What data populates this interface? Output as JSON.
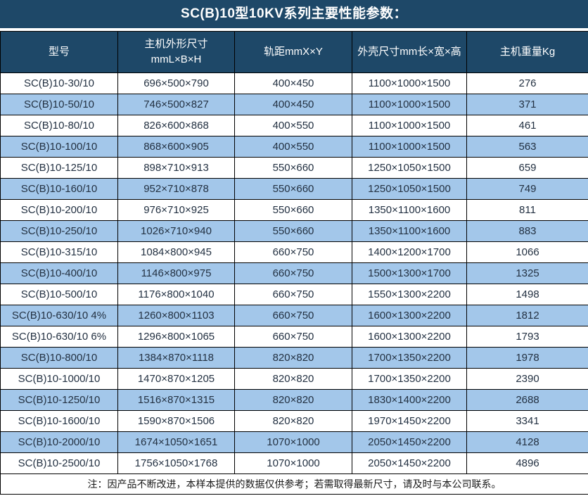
{
  "page": {
    "title": "SC(B)10型10KV系列主要性能参数："
  },
  "colors": {
    "header_bg": "#1E4868",
    "header_text": "#FFFFFF",
    "stripe_bg": "#A3C7EA",
    "row_bg": "#FFFFFF",
    "grid_border": "#000000",
    "body_text": "#233142"
  },
  "table": {
    "headers": [
      {
        "label": "型号"
      },
      {
        "label": "主机外形尺寸",
        "sub": "mmL×B×H"
      },
      {
        "label": "轨距mmX×Y"
      },
      {
        "label": "外壳尺寸mm长×宽×高"
      },
      {
        "label": "主机重量Kg"
      }
    ],
    "rows": [
      [
        "SC(B)10-30/10",
        "696×500×790",
        "400×450",
        "1100×1000×1500",
        "276"
      ],
      [
        "SC(B)10-50/10",
        "746×500×827",
        "400×450",
        "1100×1000×1500",
        "371"
      ],
      [
        "SC(B)10-80/10",
        "826×600×868",
        "400×550",
        "1100×1000×1500",
        "461"
      ],
      [
        "SC(B)10-100/10",
        "868×600×905",
        "400×550",
        "1100×1000×1500",
        "563"
      ],
      [
        "SC(B)10-125/10",
        "898×710×913",
        "550×660",
        "1250×1050×1500",
        "659"
      ],
      [
        "SC(B)10-160/10",
        "952×710×878",
        "550×660",
        "1250×1050×1500",
        "749"
      ],
      [
        "SC(B)10-200/10",
        "976×710×925",
        "550×660",
        "1350×1100×1600",
        "811"
      ],
      [
        "SC(B)10-250/10",
        "1026×710×940",
        "550×660",
        "1350×1100×1600",
        "883"
      ],
      [
        "SC(B)10-315/10",
        "1084×800×945",
        "660×750",
        "1400×1200×1700",
        "1066"
      ],
      [
        "SC(B)10-400/10",
        "1146×800×975",
        "660×750",
        "1500×1300×1700",
        "1325"
      ],
      [
        "SC(B)10-500/10",
        "1176×800×1040",
        "660×750",
        "1550×1300×2200",
        "1498"
      ],
      [
        "SC(B)10-630/10 4%",
        "1260×800×1103",
        "660×750",
        "1600×1300×2200",
        "1812"
      ],
      [
        "SC(B)10-630/10 6%",
        "1296×800×1065",
        "660×750",
        "1600×1300×2200",
        "1793"
      ],
      [
        "SC(B)10-800/10",
        "1384×870×1118",
        "820×820",
        "1700×1350×2200",
        "1978"
      ],
      [
        "SC(B)10-1000/10",
        "1470×870×1205",
        "820×820",
        "1700×1350×2200",
        "2390"
      ],
      [
        "SC(B)10-1250/10",
        "1516×870×1315",
        "820×820",
        "1830×1400×2200",
        "2688"
      ],
      [
        "SC(B)10-1600/10",
        "1590×870×1506",
        "820×820",
        "1970×1450×2200",
        "3341"
      ],
      [
        "SC(B)10-2000/10",
        "1674×1050×1651",
        "1070×1000",
        "2050×1450×2200",
        "4128"
      ],
      [
        "SC(B)10-2500/10",
        "1756×1050×1768",
        "1070×1000",
        "2050×1450×2200",
        "4896"
      ]
    ],
    "note": "注：因产品不断改进，本样本提供的数据仅供参考；若需取得最新尺寸，请及时与本公司联系。"
  }
}
